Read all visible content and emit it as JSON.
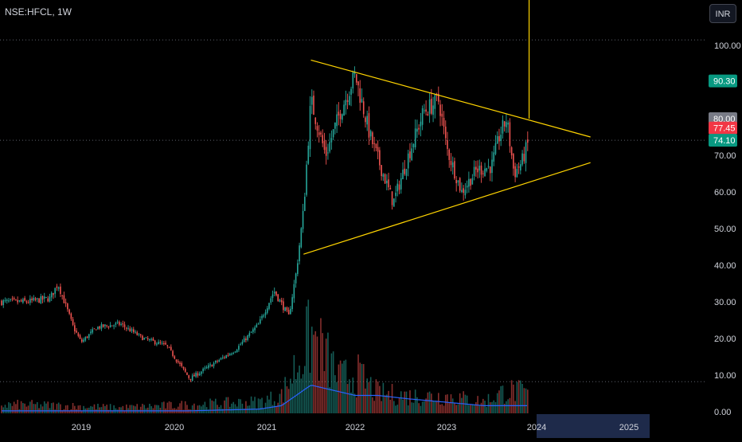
{
  "header": {
    "symbol": "NSE:HFCL, 1W",
    "currency": "INR"
  },
  "colors": {
    "up": "#26a69a",
    "down": "#ef5350",
    "pattern": "#ffd400",
    "volume_ma": "#2962ff",
    "bg": "#000000",
    "grid_dots": "#5d606b",
    "badge_green": "#089981",
    "badge_red": "#f23645",
    "badge_grey": "#787b86"
  },
  "chart_data": {
    "type": "candlestick",
    "symbol": "NSE:HFCL",
    "interval": "1W",
    "currency": "INR",
    "x_tick_labels": [
      "2019",
      "2020",
      "2021",
      "2022",
      "2023",
      "2024",
      "2025"
    ],
    "y_tick_labels": [
      "0.00",
      "10.00",
      "20.00",
      "30.00",
      "40.00",
      "50.00",
      "60.00",
      "70.00",
      "80.00",
      "90.00",
      "100.00"
    ],
    "ylim": [
      0,
      110
    ],
    "price_badges": [
      {
        "label": "90.30",
        "value": 90.3,
        "color": "green"
      },
      {
        "label": "80.00",
        "value": 80.0,
        "color": "grey"
      },
      {
        "label": "77.45",
        "value": 77.45,
        "color": "red"
      },
      {
        "label": "74.10",
        "value": 74.1,
        "color": "green"
      }
    ],
    "dotted_levels": [
      101.5,
      74.1,
      8.2
    ],
    "close_series": [
      {
        "date": "2018-06",
        "close": 30
      },
      {
        "date": "2018-09",
        "close": 31
      },
      {
        "date": "2018-10",
        "close": 35
      },
      {
        "date": "2018-12",
        "close": 23
      },
      {
        "date": "2019-01",
        "close": 19
      },
      {
        "date": "2019-03",
        "close": 23
      },
      {
        "date": "2019-06",
        "close": 24
      },
      {
        "date": "2019-09",
        "close": 20
      },
      {
        "date": "2019-12",
        "close": 18
      },
      {
        "date": "2020-03",
        "close": 9
      },
      {
        "date": "2020-06",
        "close": 13
      },
      {
        "date": "2020-09",
        "close": 17
      },
      {
        "date": "2020-12",
        "close": 24
      },
      {
        "date": "2021-02",
        "close": 33
      },
      {
        "date": "2021-04",
        "close": 26
      },
      {
        "date": "2021-05",
        "close": 38
      },
      {
        "date": "2021-06",
        "close": 55
      },
      {
        "date": "2021-07",
        "close": 85
      },
      {
        "date": "2021-09",
        "close": 70
      },
      {
        "date": "2021-11",
        "close": 82
      },
      {
        "date": "2022-01",
        "close": 92
      },
      {
        "date": "2022-03",
        "close": 75
      },
      {
        "date": "2022-05",
        "close": 63
      },
      {
        "date": "2022-06",
        "close": 57
      },
      {
        "date": "2022-08",
        "close": 70
      },
      {
        "date": "2022-10",
        "close": 82
      },
      {
        "date": "2022-12",
        "close": 85
      },
      {
        "date": "2023-01",
        "close": 72
      },
      {
        "date": "2023-03",
        "close": 60
      },
      {
        "date": "2023-05",
        "close": 66
      },
      {
        "date": "2023-07",
        "close": 67
      },
      {
        "date": "2023-08",
        "close": 75
      },
      {
        "date": "2023-09",
        "close": 80
      },
      {
        "date": "2023-10",
        "close": 65
      },
      {
        "date": "2023-11",
        "close": 68
      },
      {
        "date": "2023-12",
        "close": 74.1
      }
    ],
    "volume_series": [
      {
        "date": "2018-06",
        "volume": 3,
        "ma": 0.5
      },
      {
        "date": "2019-06",
        "volume": 2,
        "ma": 0.5
      },
      {
        "date": "2020-03",
        "volume": 3,
        "ma": 0.5
      },
      {
        "date": "2020-12",
        "volume": 4,
        "ma": 1
      },
      {
        "date": "2021-03",
        "volume": 6,
        "ma": 2
      },
      {
        "date": "2021-07",
        "volume": 27,
        "ma": 8
      },
      {
        "date": "2021-11",
        "volume": 12,
        "ma": 6
      },
      {
        "date": "2022-01",
        "volume": 14,
        "ma": 5
      },
      {
        "date": "2022-04",
        "volume": 7,
        "ma": 5
      },
      {
        "date": "2022-08",
        "volume": 6,
        "ma": 4
      },
      {
        "date": "2023-01",
        "volume": 6,
        "ma": 3
      },
      {
        "date": "2023-06",
        "volume": 4,
        "ma": 2
      },
      {
        "date": "2023-09",
        "volume": 8,
        "ma": 2
      },
      {
        "date": "2023-12",
        "volume": 7,
        "ma": 2
      }
    ],
    "triangle_pattern": {
      "upper_line": [
        {
          "date": "2021-07",
          "value": 96
        },
        {
          "date": "2024-08",
          "value": 75
        }
      ],
      "lower_line": [
        {
          "date": "2021-06",
          "value": 43
        },
        {
          "date": "2024-08",
          "value": 68
        }
      ],
      "vertical_line_date": "2023-12"
    }
  }
}
